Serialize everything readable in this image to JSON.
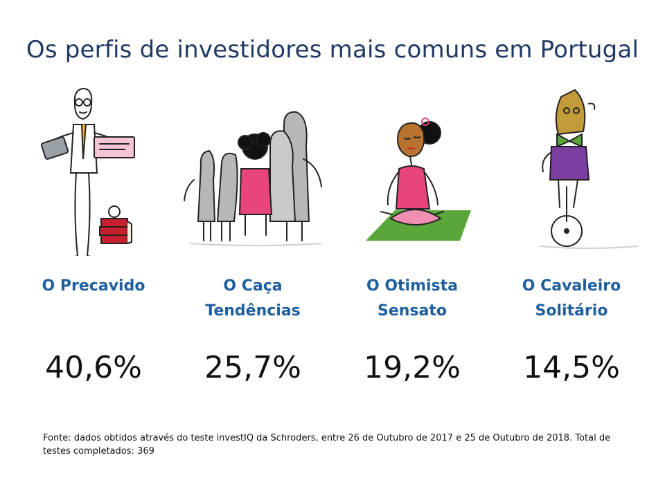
{
  "title": "Os perfis de investidores mais comuns em Portugal",
  "profiles": [
    {
      "name": "O Precavido",
      "percent": "40,6%",
      "illustration": "cautious-man-icon"
    },
    {
      "name": "O Caça Tendências",
      "percent": "25,7%",
      "illustration": "crowd-icon"
    },
    {
      "name": "O Otimista Sensato",
      "percent": "19,2%",
      "illustration": "meditating-woman-icon"
    },
    {
      "name": "O Cavaleiro Solitário",
      "percent": "14,5%",
      "illustration": "unicyclist-icon"
    }
  ],
  "source": "Fonte: dados obtidos através do teste investIQ da Schroders, entre 26 de Outubro de 2017 e 25 de Outubro de 2018. Total de testes completados: 369",
  "colors": {
    "title": "#1f3864",
    "label": "#1f5f9f",
    "pink": "#e8457f",
    "green": "#5aa63a",
    "purple": "#7b3fa0"
  }
}
